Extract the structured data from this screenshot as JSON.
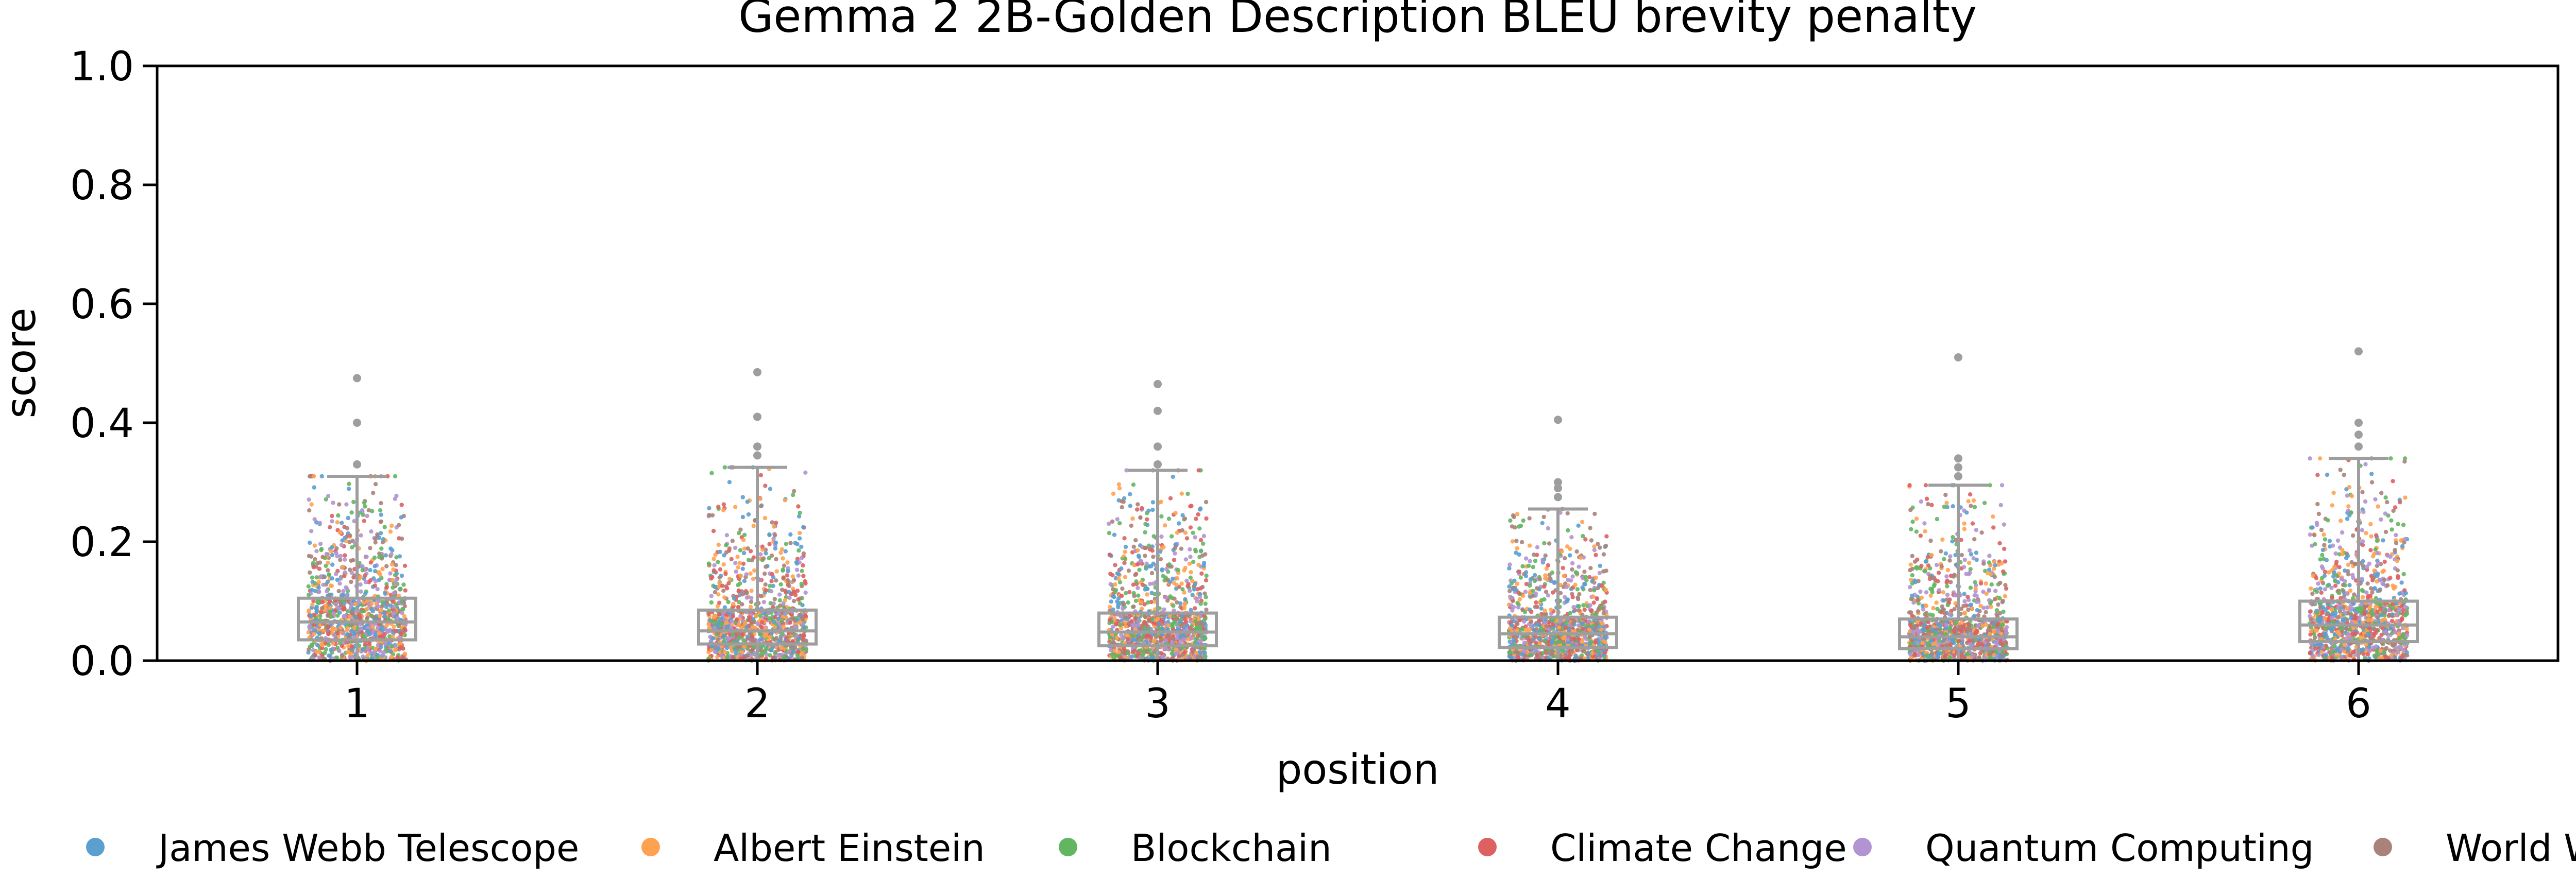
{
  "chart_data": {
    "type": "box+strip",
    "title": "Gemma 2 2B-Golden Description BLEU brevity penalty",
    "xlabel": "position",
    "ylabel": "score",
    "ylim": [
      0.0,
      1.0
    ],
    "yticks": [
      "0.0",
      "0.2",
      "0.4",
      "0.6",
      "0.8",
      "1.0"
    ],
    "categories": [
      "1",
      "2",
      "3",
      "4",
      "5",
      "6"
    ],
    "grid": false,
    "legend_position": "bottom",
    "series": [
      {
        "name": "James Webb Telescope",
        "color": "#5a9fd0"
      },
      {
        "name": "Albert Einstein",
        "color": "#ffa24f"
      },
      {
        "name": "Blockchain",
        "color": "#62b662"
      },
      {
        "name": "Climate Change",
        "color": "#de6161"
      },
      {
        "name": "Quantum Computing",
        "color": "#b194d1"
      },
      {
        "name": "World War II",
        "color": "#ab8279"
      }
    ],
    "boxes": [
      {
        "position": "1",
        "whisker_low": 0.0,
        "q1": 0.035,
        "median": 0.065,
        "q3": 0.105,
        "whisker_high": 0.31,
        "outliers": [
          0.33,
          0.4,
          0.475
        ]
      },
      {
        "position": "2",
        "whisker_low": 0.0,
        "q1": 0.028,
        "median": 0.05,
        "q3": 0.085,
        "whisker_high": 0.325,
        "outliers": [
          0.345,
          0.36,
          0.41,
          0.485
        ]
      },
      {
        "position": "3",
        "whisker_low": 0.0,
        "q1": 0.025,
        "median": 0.048,
        "q3": 0.08,
        "whisker_high": 0.32,
        "outliers": [
          0.33,
          0.36,
          0.42,
          0.465
        ]
      },
      {
        "position": "4",
        "whisker_low": 0.0,
        "q1": 0.022,
        "median": 0.045,
        "q3": 0.073,
        "whisker_high": 0.255,
        "outliers": [
          0.275,
          0.29,
          0.3,
          0.405
        ]
      },
      {
        "position": "5",
        "whisker_low": 0.0,
        "q1": 0.02,
        "median": 0.04,
        "q3": 0.07,
        "whisker_high": 0.295,
        "outliers": [
          0.31,
          0.325,
          0.34,
          0.51
        ]
      },
      {
        "position": "6",
        "whisker_low": 0.0,
        "q1": 0.032,
        "median": 0.06,
        "q3": 0.1,
        "whisker_high": 0.34,
        "outliers": [
          0.36,
          0.38,
          0.4,
          0.52
        ]
      }
    ],
    "box_color": "#9e9e9e"
  }
}
